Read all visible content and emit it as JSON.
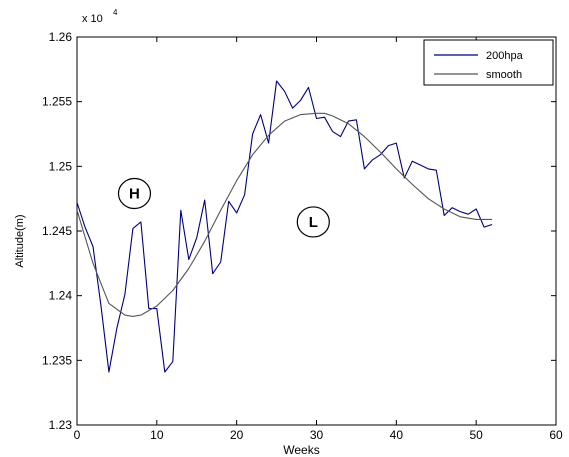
{
  "chart_data": {
    "type": "line",
    "xlabel": "Weeks",
    "ylabel": "Altitude(m)",
    "xlim": [
      0,
      60
    ],
    "ylim": [
      1.23,
      1.26
    ],
    "multiplier_base": "x 10",
    "multiplier_exp": "4",
    "xticks": [
      "0",
      "10",
      "20",
      "30",
      "40",
      "50",
      "60"
    ],
    "yticks": [
      "1.23",
      "1.235",
      "1.24",
      "1.245",
      "1.25",
      "1.255",
      "1.26"
    ],
    "grid": false,
    "legend_position": "top-right",
    "series": [
      {
        "name": "200hpa",
        "color": "#00007f",
        "x": [
          0,
          1,
          2,
          3,
          4,
          5,
          6,
          7,
          8,
          9,
          10,
          11,
          12,
          13,
          14,
          15,
          16,
          17,
          18,
          19,
          20,
          21,
          22,
          23,
          24,
          25,
          26,
          27,
          28,
          29,
          30,
          31,
          32,
          33,
          34,
          35,
          36,
          37,
          38,
          39,
          40,
          41,
          42,
          43,
          44,
          45,
          46,
          47,
          48,
          49,
          50,
          51,
          52
        ],
        "values": [
          1.2472,
          1.2453,
          1.2438,
          1.2392,
          1.2341,
          1.2375,
          1.2401,
          1.2452,
          1.2457,
          1.239,
          1.239,
          1.2341,
          1.2349,
          1.2466,
          1.2428,
          1.2445,
          1.2474,
          1.2417,
          1.2426,
          1.2473,
          1.2464,
          1.2478,
          1.2525,
          1.254,
          1.2518,
          1.2566,
          1.2558,
          1.2545,
          1.2551,
          1.2561,
          1.2537,
          1.2538,
          1.2527,
          1.2523,
          1.2535,
          1.2536,
          1.2498,
          1.2505,
          1.2509,
          1.2516,
          1.2518,
          1.2491,
          1.2504,
          1.2501,
          1.2498,
          1.2497,
          1.2462,
          1.2468,
          1.2465,
          1.2463,
          1.2467,
          1.2453,
          1.2455
        ]
      },
      {
        "name": "smooth",
        "color": "#555555",
        "x": [
          0,
          2,
          4,
          6,
          7,
          8,
          10,
          12,
          14,
          16,
          18,
          20,
          22,
          24,
          26,
          28,
          30,
          31,
          32,
          34,
          36,
          38,
          40,
          42,
          44,
          46,
          48,
          50,
          52
        ],
        "values": [
          1.2466,
          1.2425,
          1.2394,
          1.2385,
          1.2384,
          1.2385,
          1.2392,
          1.2404,
          1.2421,
          1.2442,
          1.2466,
          1.2489,
          1.2509,
          1.2524,
          1.2535,
          1.254,
          1.2541,
          1.2541,
          1.2539,
          1.2533,
          1.2523,
          1.2511,
          1.2498,
          1.2486,
          1.2475,
          1.2467,
          1.2461,
          1.2459,
          1.2459
        ]
      }
    ],
    "annotations": [
      {
        "label": "H",
        "x": 7.2,
        "y": 1.2479
      },
      {
        "label": "L",
        "x": 29.6,
        "y": 1.2457
      }
    ]
  }
}
